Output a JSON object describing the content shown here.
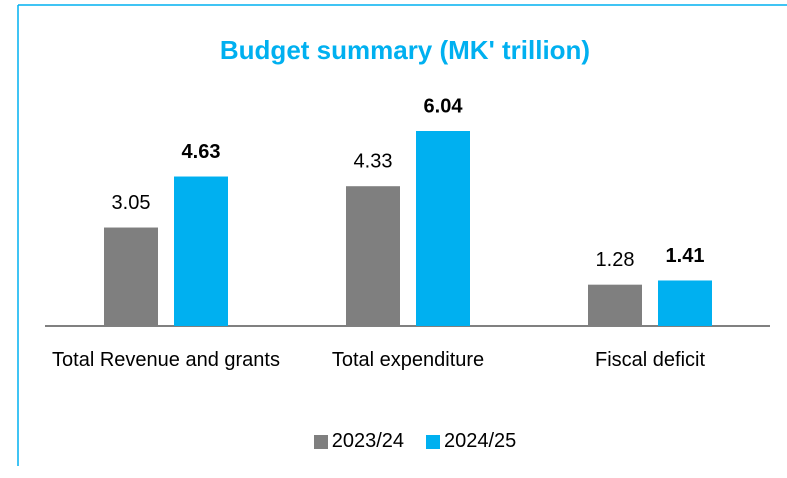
{
  "chart_data": {
    "type": "bar",
    "title": "Budget summary (MK' trillion)",
    "categories": [
      "Total Revenue and grants",
      "Total expenditure",
      "Fiscal deficit"
    ],
    "series": [
      {
        "name": "2023/24",
        "color": "#7f7f7f",
        "values": [
          3.05,
          4.33,
          1.28
        ]
      },
      {
        "name": "2024/25",
        "color": "#00b0f0",
        "values": [
          4.63,
          6.04,
          1.41
        ]
      }
    ],
    "legend": "bottom"
  }
}
